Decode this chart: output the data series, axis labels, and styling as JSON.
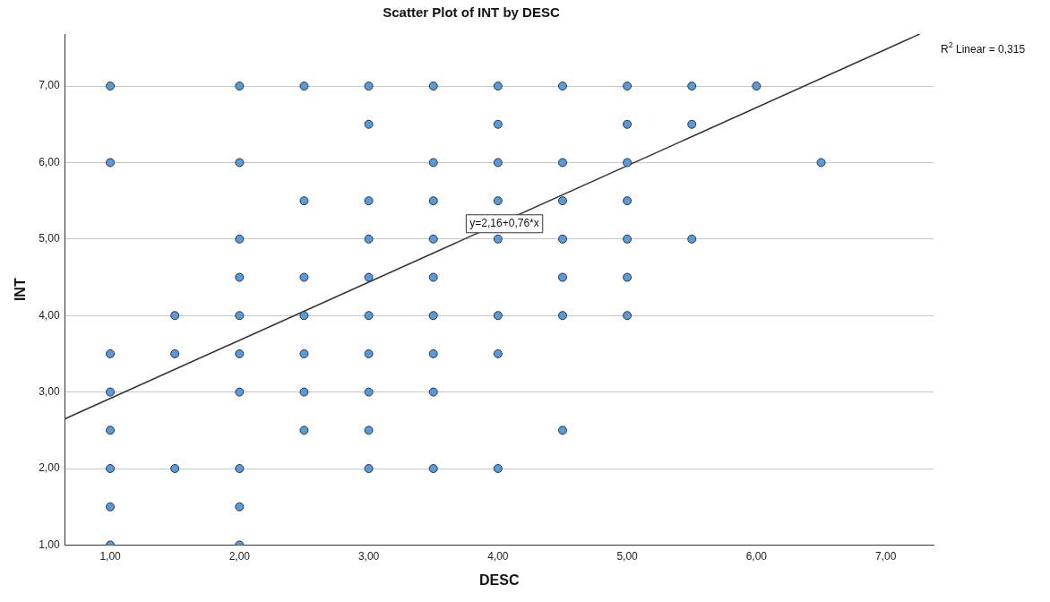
{
  "chart_data": {
    "type": "scatter",
    "title": "Scatter Plot of INT by DESC",
    "xlabel": "DESC",
    "ylabel": "INT",
    "xlim": [
      0.65,
      7.37
    ],
    "ylim": [
      1,
      7.68
    ],
    "xticks": [
      {
        "value": 1,
        "label": "1,00"
      },
      {
        "value": 2,
        "label": "2,00"
      },
      {
        "value": 3,
        "label": "3,00"
      },
      {
        "value": 4,
        "label": "4,00"
      },
      {
        "value": 5,
        "label": "5,00"
      },
      {
        "value": 6,
        "label": "6,00"
      },
      {
        "value": 7,
        "label": "7,00"
      }
    ],
    "yticks": [
      {
        "value": 1,
        "label": "1,00"
      },
      {
        "value": 2,
        "label": "2,00"
      },
      {
        "value": 3,
        "label": "3,00"
      },
      {
        "value": 4,
        "label": "4,00"
      },
      {
        "value": 5,
        "label": "5,00"
      },
      {
        "value": 6,
        "label": "6,00"
      },
      {
        "value": 7,
        "label": "7,00"
      }
    ],
    "grid": "y",
    "legend": false,
    "marker": "circle",
    "series": [
      {
        "color": "#5b9bd5",
        "x": [
          1,
          1,
          1,
          1,
          1,
          1,
          1,
          1,
          1.5,
          1.5,
          1.5,
          2,
          2,
          2,
          2,
          2,
          2,
          2,
          2,
          2,
          2,
          2.5,
          2.5,
          2.5,
          2.5,
          2.5,
          2.5,
          2.5,
          3,
          3,
          3,
          3,
          3,
          3,
          3,
          3,
          3,
          3,
          3.5,
          3.5,
          3.5,
          3.5,
          3.5,
          3.5,
          3.5,
          3.5,
          3.5,
          4,
          4,
          4,
          4,
          4,
          4,
          4,
          4,
          4.5,
          4.5,
          4.5,
          4.5,
          4.5,
          4.5,
          4.5,
          5,
          5,
          5,
          5,
          5,
          5,
          5,
          5.5,
          5.5,
          5.5,
          6,
          6.5
        ],
        "values": [
          7,
          6,
          3.5,
          3,
          2.5,
          2,
          1.5,
          1,
          4,
          3.5,
          2,
          7,
          6,
          5,
          4.5,
          4,
          3.5,
          3,
          2,
          1.5,
          1,
          7,
          5.5,
          4.5,
          4,
          3.5,
          3,
          2.5,
          7,
          6.5,
          5.5,
          5,
          4.5,
          4,
          3.5,
          3,
          2.5,
          2,
          7,
          6,
          5.5,
          5,
          4.5,
          4,
          3.5,
          3,
          2,
          7,
          6.5,
          6,
          5.5,
          5,
          4,
          3.5,
          2,
          7,
          6,
          5.5,
          5,
          4.5,
          4,
          2.5,
          7,
          6.5,
          6,
          5.5,
          5,
          4.5,
          4,
          7,
          6.5,
          5,
          7,
          6
        ]
      },
      {
        "type": "line",
        "color": "#333333",
        "marker": "none",
        "line_style": "solid",
        "x": [
          0.65,
          7.263
        ],
        "values": [
          2.65,
          7.68
        ]
      }
    ],
    "annotations": [
      "R$^{2}$ Linear = 0,315",
      {
        "text": "y=2,16+0,76*x",
        "x": 4.05,
        "y": 5.2
      }
    ]
  }
}
